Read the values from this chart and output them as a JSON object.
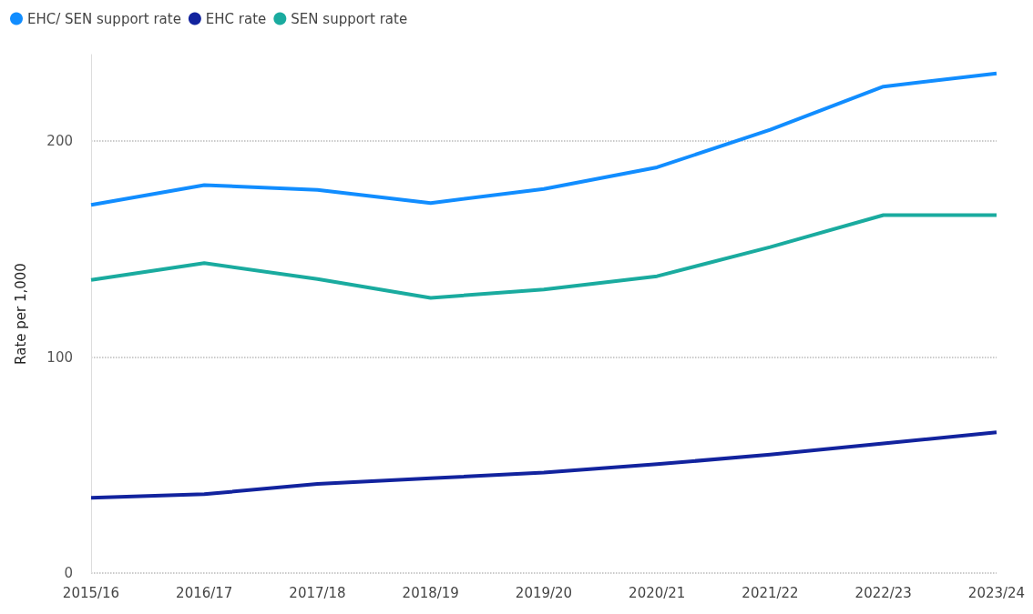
{
  "chart_data": {
    "type": "line",
    "ylabel": "Rate per 1,000",
    "categories": [
      "2015/16",
      "2016/17",
      "2017/18",
      "2018/19",
      "2019/20",
      "2020/21",
      "2021/22",
      "2022/23",
      "2023/24"
    ],
    "series": [
      {
        "name": "EHC/ SEN support rate",
        "color": "#118dff",
        "values": [
          170.4,
          179.6,
          177.4,
          171.3,
          177.8,
          187.8,
          205.2,
          225.2,
          231.3
        ]
      },
      {
        "name": "EHC rate",
        "color": "#12239e",
        "values": [
          34.8,
          36.5,
          41.3,
          43.9,
          46.5,
          50.4,
          54.8,
          60,
          65.2
        ]
      },
      {
        "name": "SEN support rate",
        "color": "#1aab9f",
        "values": [
          135.7,
          143.5,
          136.1,
          127.4,
          131.3,
          137.4,
          150.9,
          165.7,
          165.7
        ]
      }
    ],
    "ylim": [
      0,
      240
    ],
    "yticks": [
      0,
      100,
      200
    ],
    "grid": "y",
    "legend": "top left"
  }
}
